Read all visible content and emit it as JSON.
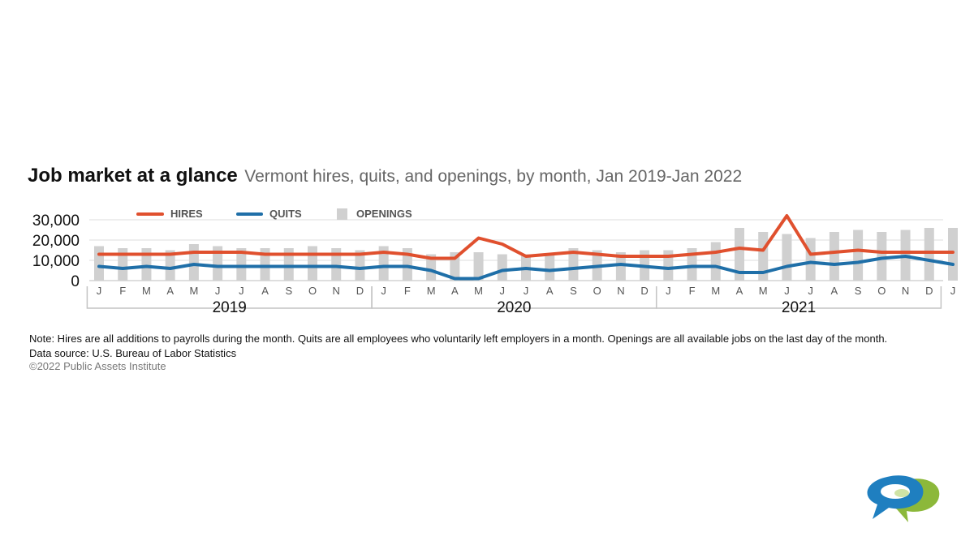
{
  "header": {
    "title": "Job market at a glance",
    "subtitle": "Vermont hires, quits, and openings, by month, Jan 2019-Jan 2022"
  },
  "note": "Note: Hires are all additions to payrolls during the month. Quits are all employees who voluntarily left employers in a month. Openings are all available jobs on the last day of the month.",
  "source": "Data source: U.S. Bureau of Labor Statistics",
  "copyright": "©2022 Public Assets Institute",
  "logo_icon": "speech-bubbles-logo-icon",
  "colors": {
    "hires": "#e0502e",
    "quits": "#1f6fa8",
    "openings": "#d0d0d0",
    "grid": "#dddddd"
  },
  "chart_data": {
    "type": "bar",
    "x": [
      "J",
      "F",
      "M",
      "A",
      "M",
      "J",
      "J",
      "A",
      "S",
      "O",
      "N",
      "D",
      "J",
      "F",
      "M",
      "A",
      "M",
      "J",
      "J",
      "A",
      "S",
      "O",
      "N",
      "D",
      "J",
      "F",
      "M",
      "A",
      "M",
      "J",
      "J",
      "A",
      "S",
      "O",
      "N",
      "D",
      "J"
    ],
    "year_groups": [
      {
        "label": "2019",
        "start": 0,
        "end": 11
      },
      {
        "label": "2020",
        "start": 12,
        "end": 23
      },
      {
        "label": "2021",
        "start": 24,
        "end": 35
      }
    ],
    "ylim": [
      0,
      30000
    ],
    "yticks": [
      0,
      10000,
      20000,
      30000
    ],
    "ytick_labels": [
      "0",
      "10,000",
      "20,000",
      "30,000"
    ],
    "grid": true,
    "legend": "top",
    "series": [
      {
        "name": "HIRES",
        "type": "line",
        "values": [
          13000,
          13000,
          13000,
          13000,
          14000,
          14000,
          14000,
          13000,
          13000,
          13000,
          13000,
          13000,
          14000,
          13000,
          11000,
          11000,
          21000,
          18000,
          12000,
          13000,
          14000,
          13000,
          12000,
          12000,
          12000,
          13000,
          14000,
          16000,
          15000,
          32000,
          13000,
          14000,
          15000,
          14000,
          14000,
          14000,
          14000
        ]
      },
      {
        "name": "QUITS",
        "type": "line",
        "values": [
          7000,
          6000,
          7000,
          6000,
          8000,
          7000,
          7000,
          7000,
          7000,
          7000,
          7000,
          6000,
          7000,
          7000,
          5000,
          1000,
          1000,
          5000,
          6000,
          5000,
          6000,
          7000,
          8000,
          7000,
          6000,
          7000,
          7000,
          4000,
          4000,
          7000,
          9000,
          8000,
          9000,
          11000,
          12000,
          10000,
          8000
        ]
      },
      {
        "name": "OPENINGS",
        "type": "bar",
        "values": [
          17000,
          16000,
          16000,
          15000,
          18000,
          17000,
          16000,
          16000,
          16000,
          17000,
          16000,
          15000,
          17000,
          16000,
          13000,
          14000,
          14000,
          13000,
          13000,
          13000,
          16000,
          15000,
          14000,
          15000,
          15000,
          16000,
          19000,
          26000,
          24000,
          23000,
          21000,
          24000,
          25000,
          24000,
          25000,
          26000,
          26000
        ]
      }
    ]
  }
}
